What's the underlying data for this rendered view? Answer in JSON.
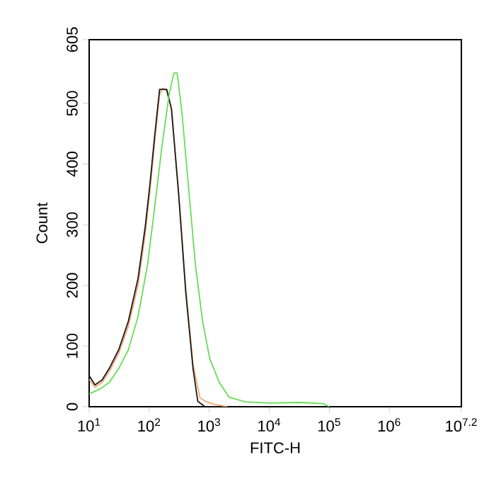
{
  "chart_data": {
    "type": "line",
    "xlabel": "FITC-H",
    "ylabel": "Count",
    "log": "x",
    "marker": "none",
    "grid": false,
    "xlim": [
      10,
      15848932
    ],
    "ylim": [
      0,
      605
    ],
    "xticks": [
      {
        "value": 10,
        "label": "10$^{1}$"
      },
      {
        "value": 100,
        "label": "10$^{2}$"
      },
      {
        "value": 1000,
        "label": "10$^{3}$"
      },
      {
        "value": 10000,
        "label": "10$^{4}$"
      },
      {
        "value": 100000,
        "label": "10$^{5}$"
      },
      {
        "value": 1000000,
        "label": "10$^{6}$"
      },
      {
        "value": 15848932,
        "label": "10$^{7.2}$"
      }
    ],
    "yticks": [
      0,
      100,
      200,
      300,
      400,
      500,
      605
    ],
    "series": [
      {
        "color": "#f0a870",
        "x": [
          10,
          12.5,
          16.4,
          21.6,
          31.1,
          45,
          65,
          86,
          103,
          123,
          149,
          170,
          196,
          235,
          309,
          407,
          537,
          700,
          900,
          1200,
          2000
        ],
        "values": [
          45,
          32,
          40,
          58,
          88,
          133,
          200,
          285,
          357,
          435,
          515,
          525,
          520,
          490,
          355,
          195,
          70,
          15,
          8,
          4,
          0
        ]
      },
      {
        "color": "#1a1a1a",
        "x": [
          10,
          12.5,
          16.4,
          21.6,
          31.1,
          45,
          65,
          86,
          103,
          123,
          149,
          196,
          235,
          309,
          407,
          537,
          644,
          847,
          1585
        ],
        "values": [
          51,
          36,
          44,
          63,
          94,
          141,
          211,
          297,
          367,
          445,
          523,
          523,
          491,
          351,
          188,
          63,
          9,
          0,
          0
        ]
      },
      {
        "color": "#66dd55",
        "x": [
          10,
          15,
          21.6,
          31.1,
          45,
          65,
          94,
          123,
          163,
          215,
          258,
          293,
          352,
          447,
          589,
          774,
          1021,
          1472,
          2128,
          3981,
          10000,
          31623,
          79433,
          100000
        ],
        "values": [
          21,
          29,
          40,
          63,
          94,
          148,
          234,
          328,
          429,
          515,
          550,
          550,
          484,
          367,
          234,
          141,
          79,
          40,
          16,
          8,
          6,
          7,
          5,
          0
        ]
      }
    ]
  }
}
